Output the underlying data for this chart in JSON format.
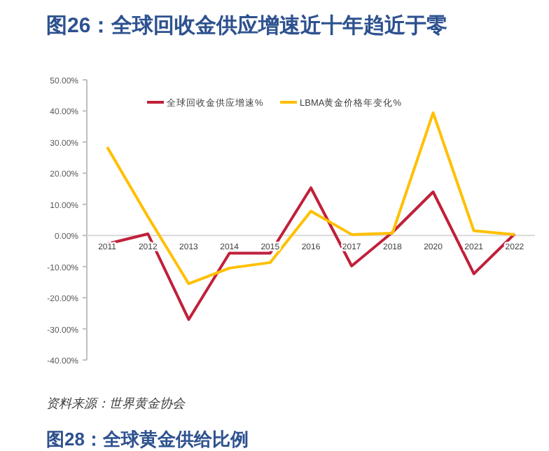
{
  "chart_data": {
    "type": "line",
    "title": "图26：全球回收金供应增速近十年趋近于零",
    "categories": [
      "2011",
      "2012",
      "2013",
      "2014",
      "2015",
      "2016",
      "2017",
      "2018",
      "2020",
      "2021",
      "2022"
    ],
    "series": [
      {
        "name": "全球回收金供应增速%",
        "color": "#c0203a",
        "values": [
          -2.7,
          0.5,
          -27,
          -5.7,
          -5.7,
          15.3,
          -9.8,
          1,
          14,
          -12.3,
          0.5
        ]
      },
      {
        "name": "LBMA黄金价格年变化%",
        "color": "#ffc000",
        "values": [
          28.4,
          6,
          -15.5,
          -10.5,
          -8.7,
          7.8,
          0.3,
          0.7,
          39.4,
          1.5,
          0.3
        ]
      }
    ],
    "ylim": [
      -40,
      50
    ],
    "yticks": [
      {
        "value": -40,
        "label": "-40.00%"
      },
      {
        "value": -30,
        "label": "-30.00%"
      },
      {
        "value": -20,
        "label": "-20.00%"
      },
      {
        "value": -10,
        "label": "-10.00%"
      },
      {
        "value": 0,
        "label": "0.00%"
      },
      {
        "value": 10,
        "label": "10.00%"
      },
      {
        "value": 20,
        "label": "20.00%"
      },
      {
        "value": 30,
        "label": "30.00%"
      },
      {
        "value": 40,
        "label": "40.00%"
      },
      {
        "value": 50,
        "label": "50.00%"
      }
    ],
    "grid": false,
    "legend": "top",
    "marker": "none",
    "line_style": "solid",
    "annotations": [
      "资料来源：世界黄金协会",
      "图28：全球黄金供给比例"
    ]
  }
}
